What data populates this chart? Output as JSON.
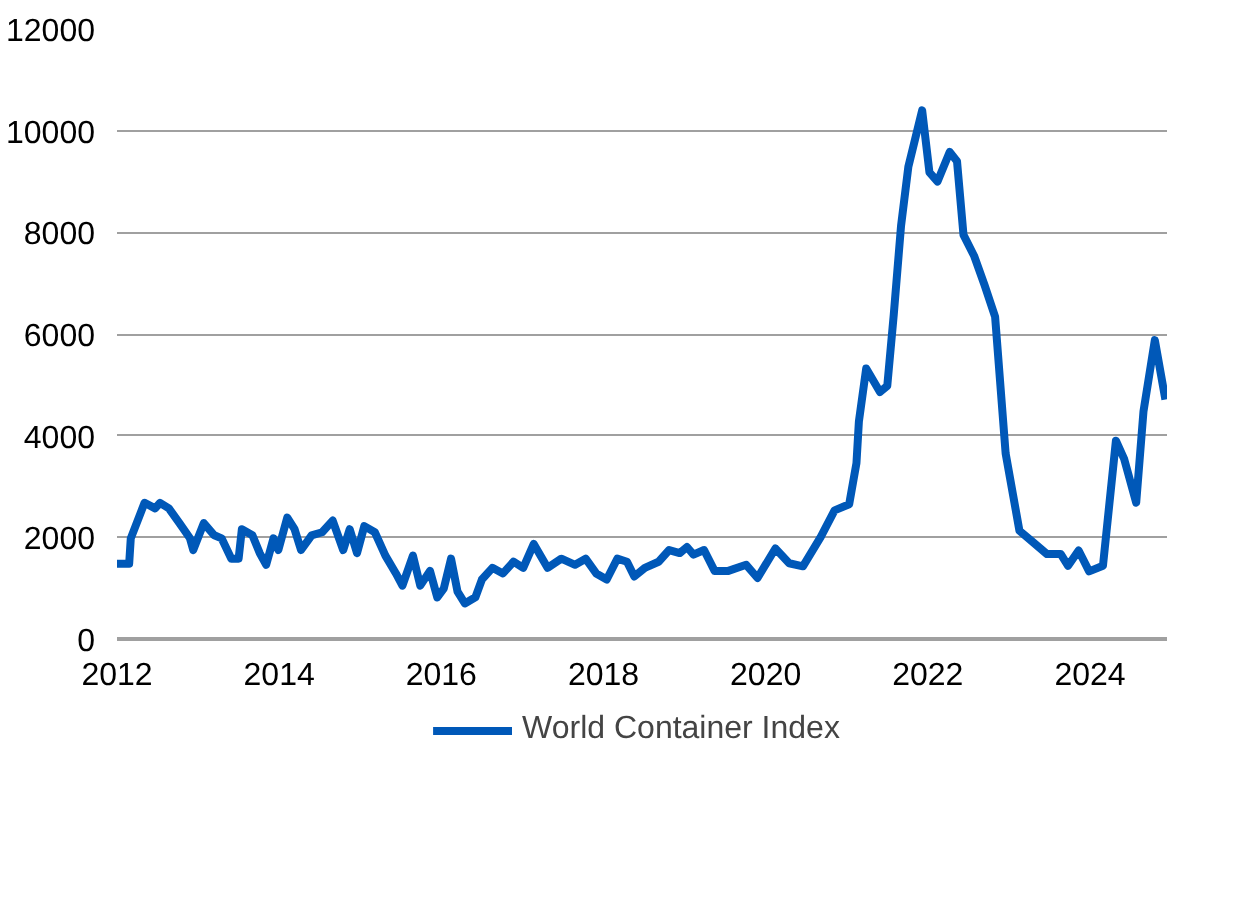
{
  "chart_data": {
    "type": "line",
    "xlim": [
      2012,
      2024.95
    ],
    "xticks": [
      2012,
      2014,
      2016,
      2018,
      2020,
      2022,
      2024
    ],
    "ylim": [
      0,
      12000
    ],
    "yticks": [
      0,
      2000,
      4000,
      6000,
      8000,
      10000,
      12000
    ],
    "grid": "y",
    "legend": "bottom",
    "marker": "none",
    "line_style": "solid",
    "series": [
      {
        "name": "World Container Index",
        "color": "#0058b8",
        "x": [
          2012.0,
          2012.15,
          2012.17,
          2012.34,
          2012.47,
          2012.53,
          2012.64,
          2012.77,
          2012.9,
          2012.94,
          2013.07,
          2013.2,
          2013.29,
          2013.41,
          2013.5,
          2013.54,
          2013.67,
          2013.76,
          2013.84,
          2013.93,
          2013.99,
          2014.1,
          2014.19,
          2014.27,
          2014.4,
          2014.53,
          2014.66,
          2014.79,
          2014.87,
          2014.96,
          2015.05,
          2015.18,
          2015.31,
          2015.44,
          2015.52,
          2015.65,
          2015.74,
          2015.86,
          2015.95,
          2016.03,
          2016.12,
          2016.2,
          2016.29,
          2016.42,
          2016.5,
          2016.63,
          2016.76,
          2016.89,
          2017.01,
          2017.14,
          2017.31,
          2017.48,
          2017.65,
          2017.78,
          2017.91,
          2018.04,
          2018.17,
          2018.29,
          2018.38,
          2018.51,
          2018.68,
          2018.81,
          2018.94,
          2019.03,
          2019.11,
          2019.24,
          2019.37,
          2019.54,
          2019.76,
          2019.9,
          2020.12,
          2020.29,
          2020.46,
          2020.68,
          2020.85,
          2021.03,
          2021.12,
          2021.15,
          2021.24,
          2021.41,
          2021.5,
          2021.58,
          2021.67,
          2021.76,
          2021.93,
          2022.02,
          2022.12,
          2022.27,
          2022.36,
          2022.44,
          2022.57,
          2022.7,
          2022.83,
          2022.96,
          2023.13,
          2023.3,
          2023.47,
          2023.64,
          2023.73,
          2023.86,
          2023.99,
          2024.16,
          2024.32,
          2024.42,
          2024.57,
          2024.66,
          2024.8,
          2024.93
        ],
        "values": [
          1480,
          1480,
          1980,
          2680,
          2570,
          2680,
          2570,
          2280,
          1980,
          1750,
          2280,
          2040,
          1980,
          1580,
          1580,
          2160,
          2040,
          1690,
          1460,
          1980,
          1750,
          2390,
          2160,
          1750,
          2040,
          2100,
          2330,
          1750,
          2160,
          1690,
          2220,
          2100,
          1640,
          1290,
          1050,
          1640,
          1050,
          1340,
          820,
          990,
          1580,
          930,
          700,
          820,
          1170,
          1400,
          1290,
          1520,
          1400,
          1870,
          1400,
          1580,
          1460,
          1580,
          1290,
          1170,
          1580,
          1520,
          1230,
          1400,
          1520,
          1750,
          1690,
          1810,
          1660,
          1750,
          1340,
          1340,
          1460,
          1200,
          1780,
          1490,
          1430,
          2010,
          2530,
          2650,
          3460,
          4280,
          5320,
          4860,
          4980,
          6380,
          8130,
          9290,
          10400,
          9180,
          9000,
          9580,
          9400,
          7950,
          7540,
          6960,
          6340,
          3650,
          2130,
          1900,
          1670,
          1670,
          1440,
          1740,
          1330,
          1440,
          3900,
          3550,
          2680,
          4480,
          5880,
          4710
        ]
      }
    ]
  }
}
